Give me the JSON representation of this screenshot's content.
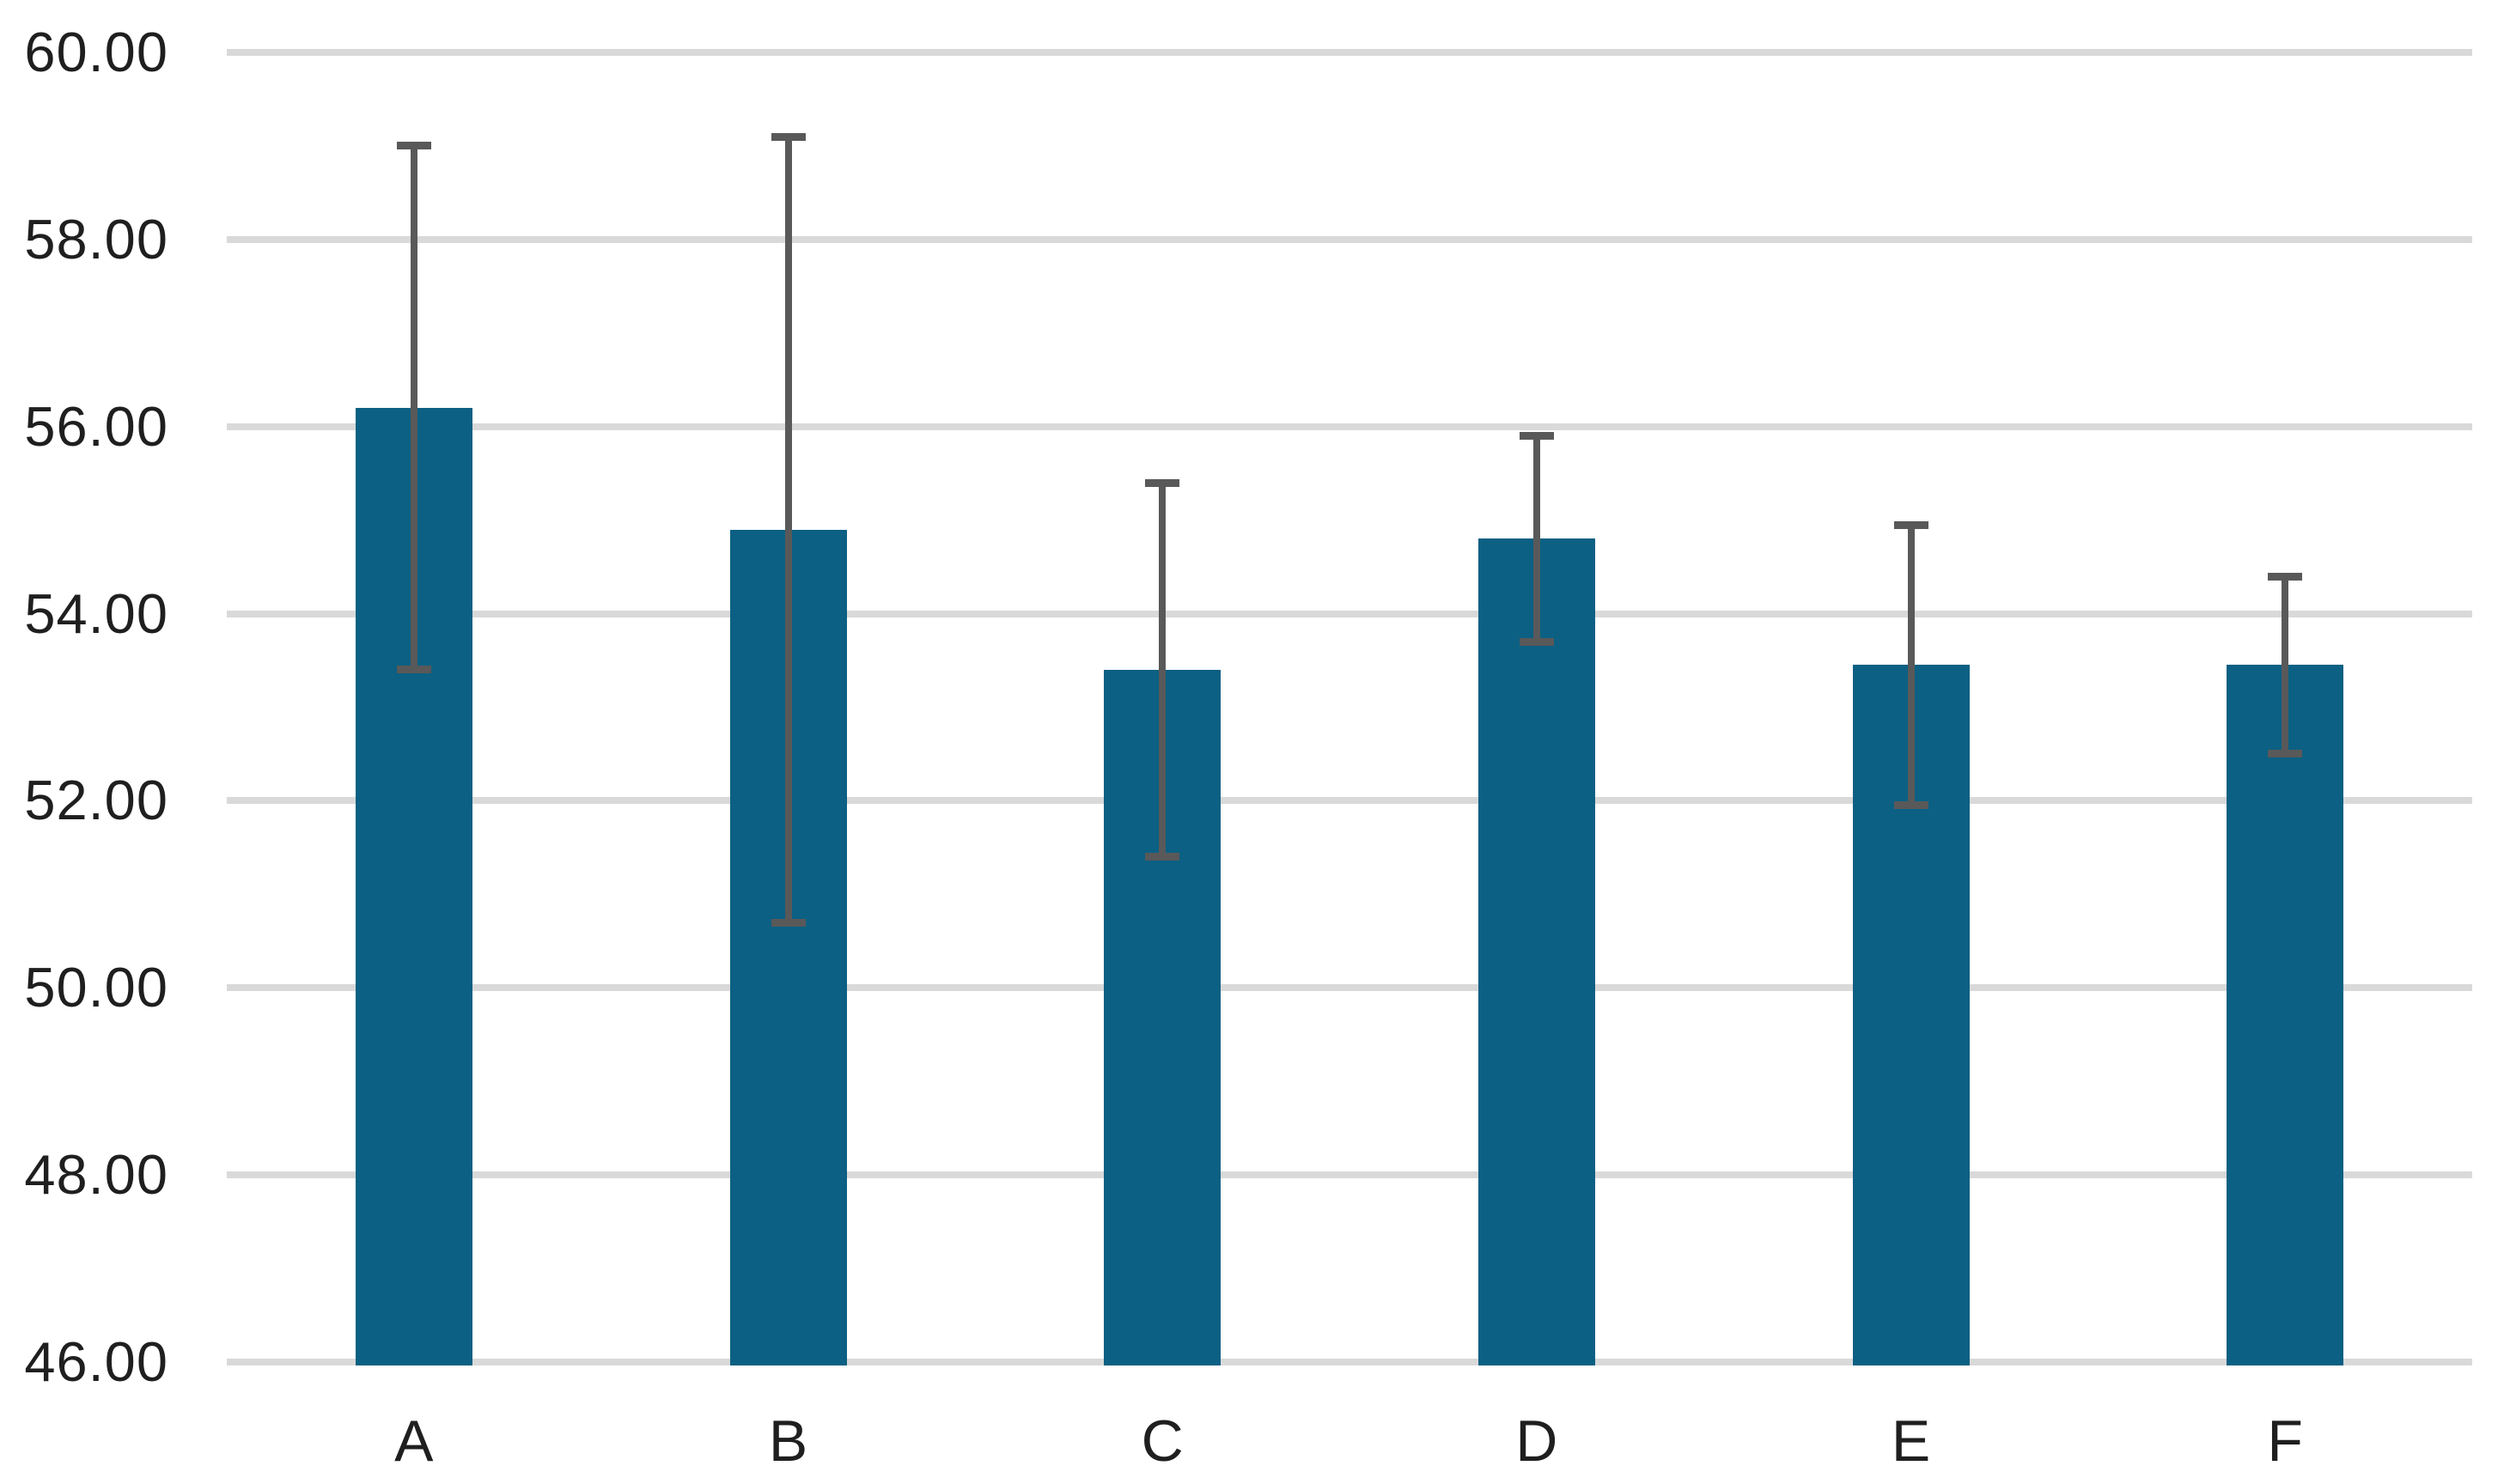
{
  "chart_data": {
    "type": "bar",
    "title": "",
    "xlabel": "",
    "ylabel": "",
    "legend": "none",
    "grid": "horizontal",
    "categories": [
      "A",
      "B",
      "C",
      "D",
      "E",
      "F"
    ],
    "series": [
      {
        "name": "values",
        "values": [
          56.2,
          54.9,
          53.4,
          54.8,
          53.45,
          53.45
        ]
      }
    ],
    "error_bars": {
      "upper": [
        59.0,
        59.1,
        55.4,
        55.9,
        54.95,
        54.4
      ],
      "lower": [
        53.4,
        50.7,
        51.4,
        53.7,
        51.95,
        52.5
      ]
    },
    "ylim": [
      46,
      60
    ],
    "y_tick_step": 2,
    "y_ticks": [
      {
        "value": 60,
        "label": "60.00"
      },
      {
        "value": 58,
        "label": "58.00"
      },
      {
        "value": 56,
        "label": "56.00"
      },
      {
        "value": 54,
        "label": "54.00"
      },
      {
        "value": 52,
        "label": "52.00"
      },
      {
        "value": 50,
        "label": "50.00"
      },
      {
        "value": 48,
        "label": "48.00"
      },
      {
        "value": 46,
        "label": "46.00"
      }
    ],
    "colors": {
      "bar_fill": "#0B6083",
      "error_bar": "#595959",
      "gridline": "#D9D9D9",
      "axis_text": "#1F1F1F",
      "background": "#FFFFFF"
    }
  }
}
